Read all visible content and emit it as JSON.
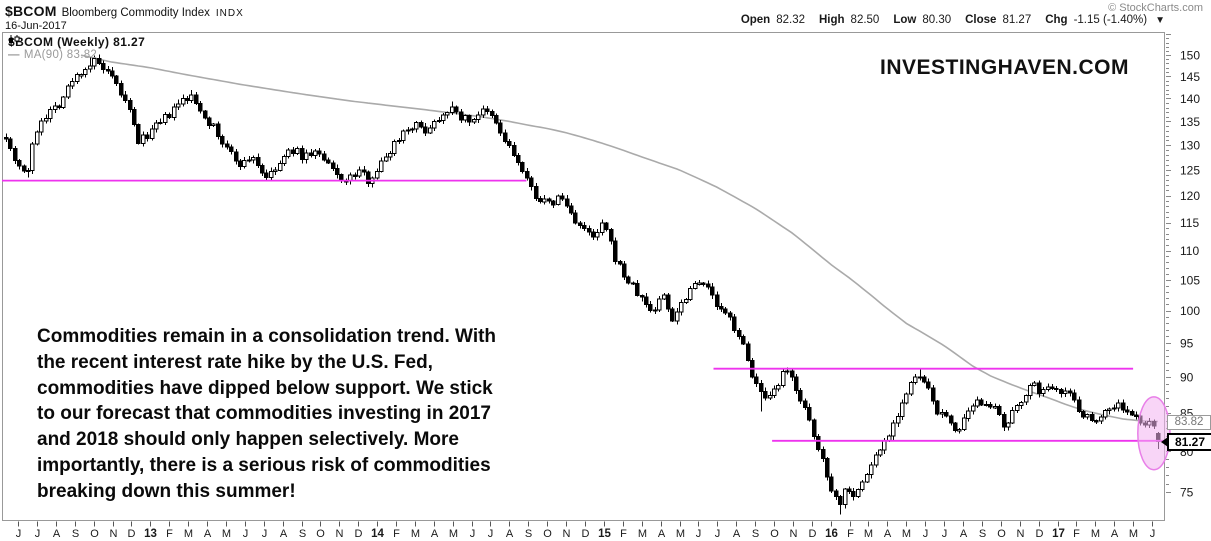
{
  "header": {
    "symbol": "$BCOM",
    "name": "Bloomberg Commodity Index",
    "exchange": "INDX",
    "date": "16-Jun-2017"
  },
  "credit": "© StockCharts.com",
  "quote": {
    "open_label": "Open",
    "open": "82.32",
    "high_label": "High",
    "high": "82.50",
    "low_label": "Low",
    "low": "80.30",
    "close_label": "Close",
    "close": "81.27",
    "chg_label": "Chg",
    "chg": "-1.15 (-1.40%)",
    "direction_glyph": "▼"
  },
  "legend": {
    "series": "$BCOM (Weekly) 81.27",
    "ma_dash": "—",
    "ma": "MA(90) 83.82"
  },
  "watermark": "INVESTINGHAVEN.COM",
  "annotation": {
    "text": "Commodities remain in a consolidation trend. With\nthe recent interest rate hike by the U.S. Fed,\ncommodities have dipped below support. We stick\nto our forecast that commodities investing in 2017\nand 2018 should only happen selectively. More\nimportantly, there is a serious risk of commodities\nbreaking down this summer!"
  },
  "price_tags": {
    "ma_value": "83.82",
    "close_value": "81.27"
  },
  "chart_data": {
    "type": "candlestick",
    "timeframe": "weekly",
    "title": "$BCOM Bloomberg Commodity Index (Weekly)",
    "date_range": [
      "Jun-2012",
      "16-Jun-2017"
    ],
    "y_scale": "log",
    "y_ticks": [
      150,
      145,
      140,
      135,
      130,
      125,
      120,
      115,
      110,
      105,
      100,
      95,
      90,
      85,
      80,
      75
    ],
    "x_labels": [
      "J",
      "J",
      "A",
      "S",
      "O",
      "N",
      "D",
      "13",
      "F",
      "M",
      "A",
      "M",
      "J",
      "J",
      "A",
      "S",
      "O",
      "N",
      "D",
      "14",
      "F",
      "M",
      "A",
      "M",
      "J",
      "J",
      "A",
      "S",
      "O",
      "N",
      "D",
      "15",
      "F",
      "M",
      "A",
      "M",
      "J",
      "J",
      "A",
      "S",
      "O",
      "N",
      "D",
      "16",
      "F",
      "M",
      "A",
      "M",
      "J",
      "J",
      "A",
      "S",
      "O",
      "N",
      "D",
      "17",
      "F",
      "M",
      "A",
      "M",
      "J"
    ],
    "last_candle": {
      "open": 82.32,
      "high": 82.5,
      "low": 80.3,
      "close": 81.27
    },
    "ma90_last_value": 83.82,
    "close_anchors_monthly": [
      [
        -0.7,
        133
      ],
      [
        -0.3,
        128
      ],
      [
        0.1,
        126
      ],
      [
        0.45,
        123.8
      ],
      [
        0.8,
        130
      ],
      [
        1.1,
        135
      ],
      [
        1.6,
        137
      ],
      [
        2.2,
        139
      ],
      [
        2.8,
        143.5
      ],
      [
        3.3,
        146
      ],
      [
        3.7,
        147.5
      ],
      [
        4.1,
        148.5
      ],
      [
        4.5,
        146.5
      ],
      [
        5,
        144
      ],
      [
        5.4,
        141.5
      ],
      [
        5.9,
        137
      ],
      [
        6.4,
        130.5
      ],
      [
        6.9,
        132.5
      ],
      [
        7.4,
        134
      ],
      [
        8,
        136.5
      ],
      [
        8.7,
        139.5
      ],
      [
        9.1,
        140.5
      ],
      [
        9.6,
        138
      ],
      [
        10.2,
        134.5
      ],
      [
        10.8,
        130.5
      ],
      [
        11.4,
        127.5
      ],
      [
        11.9,
        126
      ],
      [
        12.4,
        128
      ],
      [
        12.9,
        124.5
      ],
      [
        13.3,
        123.5
      ],
      [
        13.9,
        126.5
      ],
      [
        14.5,
        129.2
      ],
      [
        15.1,
        127.6
      ],
      [
        15.7,
        128.8
      ],
      [
        16.3,
        126.3
      ],
      [
        16.9,
        123.9
      ],
      [
        17.4,
        122.7
      ],
      [
        18,
        124.9
      ],
      [
        18.5,
        123.1
      ],
      [
        19.1,
        125.6
      ],
      [
        19.7,
        129.2
      ],
      [
        20.3,
        132.6
      ],
      [
        20.9,
        134.4
      ],
      [
        21.5,
        133.1
      ],
      [
        22.1,
        135.2
      ],
      [
        22.7,
        137.9
      ],
      [
        23.3,
        136.4
      ],
      [
        23.9,
        135.1
      ],
      [
        24.5,
        137.2
      ],
      [
        25.1,
        135.8
      ],
      [
        25.7,
        131.2
      ],
      [
        26.3,
        127.6
      ],
      [
        26.9,
        122.8
      ],
      [
        27.5,
        119.6
      ],
      [
        28.1,
        118.2
      ],
      [
        28.7,
        119.9
      ],
      [
        29.3,
        116.4
      ],
      [
        29.9,
        113.6
      ],
      [
        30.5,
        112
      ],
      [
        31,
        114.9
      ],
      [
        31.5,
        109.4
      ],
      [
        32,
        106
      ],
      [
        32.5,
        103.9
      ],
      [
        33.1,
        101.4
      ],
      [
        33.6,
        99.7
      ],
      [
        34.1,
        102.9
      ],
      [
        34.6,
        98.7
      ],
      [
        35.1,
        101.2
      ],
      [
        35.6,
        103.9
      ],
      [
        36.1,
        105.4
      ],
      [
        36.6,
        102.9
      ],
      [
        37.1,
        100.1
      ],
      [
        37.6,
        98.9
      ],
      [
        38.1,
        96.6
      ],
      [
        38.6,
        92.3
      ],
      [
        39.1,
        88.6
      ],
      [
        39.6,
        86.2
      ],
      [
        40.1,
        88.2
      ],
      [
        40.6,
        90.9
      ],
      [
        41.1,
        89.1
      ],
      [
        41.6,
        85.7
      ],
      [
        42.1,
        81.7
      ],
      [
        42.6,
        78.7
      ],
      [
        43.1,
        75.1
      ],
      [
        43.45,
        73.5
      ],
      [
        43.85,
        75.9
      ],
      [
        44.3,
        74.5
      ],
      [
        44.85,
        76.9
      ],
      [
        45.35,
        79.3
      ],
      [
        45.85,
        81.3
      ],
      [
        46.35,
        83.9
      ],
      [
        46.85,
        86.9
      ],
      [
        47.35,
        89.4
      ],
      [
        47.75,
        90.1
      ],
      [
        48.25,
        87.5
      ],
      [
        48.75,
        84.8
      ],
      [
        49.25,
        84.1
      ],
      [
        49.75,
        82.5
      ],
      [
        50.25,
        84.7
      ],
      [
        50.75,
        86.3
      ],
      [
        51.25,
        86.8
      ],
      [
        51.75,
        85.1
      ],
      [
        52.25,
        82.5
      ],
      [
        52.75,
        85.7
      ],
      [
        53.25,
        87.7
      ],
      [
        53.75,
        88.7
      ],
      [
        54.25,
        87.8
      ],
      [
        54.75,
        89
      ],
      [
        55.25,
        88.2
      ],
      [
        55.75,
        87.4
      ],
      [
        56.25,
        85.1
      ],
      [
        56.75,
        84.1
      ],
      [
        57.25,
        84.7
      ],
      [
        57.75,
        85.7
      ],
      [
        58.25,
        86.2
      ],
      [
        58.75,
        84.8
      ],
      [
        59.25,
        84.1
      ],
      [
        59.75,
        83.5
      ],
      [
        60.25,
        82.7
      ],
      [
        60.62,
        81.3
      ]
    ],
    "ma90_anchors": [
      [
        3.3,
        150
      ],
      [
        5,
        148.3
      ],
      [
        7,
        147
      ],
      [
        9,
        145.3
      ],
      [
        12,
        143
      ],
      [
        15,
        141
      ],
      [
        17.5,
        139.5
      ],
      [
        19.5,
        138.5
      ],
      [
        21,
        137.8
      ],
      [
        23,
        136.8
      ],
      [
        24.5,
        136
      ],
      [
        26,
        135
      ],
      [
        27,
        134.2
      ],
      [
        28,
        133.5
      ],
      [
        29,
        132.6
      ],
      [
        30,
        131.5
      ],
      [
        31,
        130.3
      ],
      [
        32,
        129
      ],
      [
        33,
        127.6
      ],
      [
        34,
        126.3
      ],
      [
        35,
        125
      ],
      [
        36,
        123.3
      ],
      [
        37,
        121.6
      ],
      [
        38,
        119.6
      ],
      [
        39,
        117.6
      ],
      [
        40,
        115.3
      ],
      [
        41,
        113
      ],
      [
        42,
        110.3
      ],
      [
        43,
        107.6
      ],
      [
        44,
        105.3
      ],
      [
        45,
        102.8
      ],
      [
        46,
        100.3
      ],
      [
        47,
        98
      ],
      [
        48,
        96.3
      ],
      [
        49,
        94.6
      ],
      [
        50,
        92.6
      ],
      [
        50.5,
        91.6
      ],
      [
        51.5,
        90.1
      ],
      [
        52.5,
        89
      ],
      [
        53.5,
        88
      ],
      [
        54.5,
        87.1
      ],
      [
        55.5,
        86.1
      ],
      [
        56.5,
        85.3
      ],
      [
        57.5,
        84.7
      ],
      [
        58.5,
        84.2
      ],
      [
        59.5,
        83.95
      ],
      [
        60.9,
        83.82
      ]
    ],
    "pins": [
      {
        "t": 0.45,
        "kind": "low",
        "price": 123.5
      },
      {
        "t": 3.9,
        "kind": "high",
        "price": 149.4
      },
      {
        "t": 9.1,
        "kind": "high",
        "price": 141.9
      },
      {
        "t": 17.35,
        "kind": "low",
        "price": 122.3
      },
      {
        "t": 23.0,
        "kind": "high",
        "price": 139.3
      },
      {
        "t": 39.35,
        "kind": "low",
        "price": 85.2
      },
      {
        "t": 43.45,
        "kind": "low",
        "price": 72.35
      },
      {
        "t": 47.7,
        "kind": "high",
        "price": 91.3
      }
    ],
    "support_lines": [
      {
        "price": 122.9,
        "from_month": -0.85,
        "to_month": 26.9
      },
      {
        "price": 91.2,
        "from_month": 36.8,
        "to_month": 59.0
      },
      {
        "price": 81.35,
        "from_month": 39.9,
        "to_month": 60.8
      }
    ],
    "highlight_ellipse": {
      "month": 60.1,
      "price": 82.3,
      "half_width_months": 0.85,
      "price_top": 87.2,
      "price_bottom": 77.7
    },
    "colors": {
      "candle": "#000000",
      "candle_up_fill": "#ffffff",
      "ma": "#aaaaaa",
      "support": "#ee33ee",
      "highlight_fill": "#f3b2f1",
      "highlight_stroke": "#e87fe8",
      "axis_text": "#1a1a1a",
      "frame": "#999999"
    }
  }
}
